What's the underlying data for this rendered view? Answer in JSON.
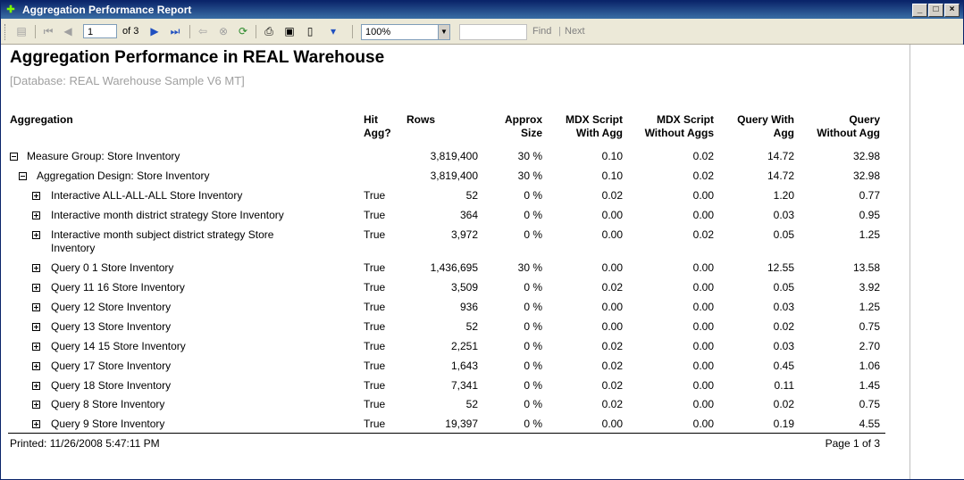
{
  "window": {
    "title": "Aggregation Performance Report"
  },
  "toolbar": {
    "page_value": "1",
    "of_label": "of",
    "total_pages": "3",
    "zoom_value": "100%",
    "find_placeholder": "",
    "find_label": "Find",
    "separator": "|",
    "next_label": "Next"
  },
  "report": {
    "title": "Aggregation Performance in REAL Warehouse",
    "subtitle": "[Database: REAL Warehouse Sample V6 MT]",
    "headers": {
      "aggregation": "Aggregation",
      "hit_agg_1": "Hit",
      "hit_agg_2": "Agg?",
      "rows": "Rows",
      "approx_1": "Approx",
      "approx_2": "Size",
      "mdx_with_1": "MDX Script",
      "mdx_with_2": "With Agg",
      "mdx_without_1": "MDX Script",
      "mdx_without_2": "Without Aggs",
      "qwith_1": "Query With",
      "qwith_2": "Agg",
      "qwithout_1": "Query",
      "qwithout_2": "Without Agg"
    },
    "rows": [
      {
        "name": "Measure Group: Store Inventory",
        "hit": "",
        "rows": "3,819,400",
        "approx": "30 %",
        "mdx_with": "0.10",
        "mdx_without": "0.02",
        "q_with": "14.72",
        "q_without": "32.98"
      },
      {
        "name": "Aggregation Design: Store Inventory",
        "hit": "",
        "rows": "3,819,400",
        "approx": "30 %",
        "mdx_with": "0.10",
        "mdx_without": "0.02",
        "q_with": "14.72",
        "q_without": "32.98"
      },
      {
        "name": "Interactive ALL-ALL-ALL Store Inventory",
        "hit": "True",
        "rows": "52",
        "approx": "0 %",
        "mdx_with": "0.02",
        "mdx_without": "0.00",
        "q_with": "1.20",
        "q_without": "0.77"
      },
      {
        "name": "Interactive month district strategy Store Inventory",
        "hit": "True",
        "rows": "364",
        "approx": "0 %",
        "mdx_with": "0.00",
        "mdx_without": "0.00",
        "q_with": "0.03",
        "q_without": "0.95"
      },
      {
        "name": "Interactive month subject district strategy Store",
        "name2": "Inventory",
        "hit": "True",
        "rows": "3,972",
        "approx": "0 %",
        "mdx_with": "0.00",
        "mdx_without": "0.02",
        "q_with": "0.05",
        "q_without": "1.25"
      },
      {
        "name": "Query 0 1 Store Inventory",
        "hit": "True",
        "rows": "1,436,695",
        "approx": "30 %",
        "mdx_with": "0.00",
        "mdx_without": "0.00",
        "q_with": "12.55",
        "q_without": "13.58"
      },
      {
        "name": "Query 11 16 Store Inventory",
        "hit": "True",
        "rows": "3,509",
        "approx": "0 %",
        "mdx_with": "0.02",
        "mdx_without": "0.00",
        "q_with": "0.05",
        "q_without": "3.92"
      },
      {
        "name": "Query 12 Store Inventory",
        "hit": "True",
        "rows": "936",
        "approx": "0 %",
        "mdx_with": "0.00",
        "mdx_without": "0.00",
        "q_with": "0.03",
        "q_without": "1.25"
      },
      {
        "name": "Query 13 Store Inventory",
        "hit": "True",
        "rows": "52",
        "approx": "0 %",
        "mdx_with": "0.00",
        "mdx_without": "0.00",
        "q_with": "0.02",
        "q_without": "0.75"
      },
      {
        "name": "Query 14 15 Store Inventory",
        "hit": "True",
        "rows": "2,251",
        "approx": "0 %",
        "mdx_with": "0.02",
        "mdx_without": "0.00",
        "q_with": "0.03",
        "q_without": "2.70"
      },
      {
        "name": "Query 17 Store Inventory",
        "hit": "True",
        "rows": "1,643",
        "approx": "0 %",
        "mdx_with": "0.02",
        "mdx_without": "0.00",
        "q_with": "0.45",
        "q_without": "1.06"
      },
      {
        "name": "Query 18 Store Inventory",
        "hit": "True",
        "rows": "7,341",
        "approx": "0 %",
        "mdx_with": "0.02",
        "mdx_without": "0.00",
        "q_with": "0.11",
        "q_without": "1.45"
      },
      {
        "name": "Query 8 Store Inventory",
        "hit": "True",
        "rows": "52",
        "approx": "0 %",
        "mdx_with": "0.02",
        "mdx_without": "0.00",
        "q_with": "0.02",
        "q_without": "0.75"
      },
      {
        "name": "Query 9 Store Inventory",
        "hit": "True",
        "rows": "19,397",
        "approx": "0 %",
        "mdx_with": "0.00",
        "mdx_without": "0.00",
        "q_with": "0.19",
        "q_without": "4.55"
      }
    ],
    "footer": {
      "printed": "Printed:  11/26/2008 5:47:11 PM",
      "page": "Page 1 of 3"
    }
  }
}
